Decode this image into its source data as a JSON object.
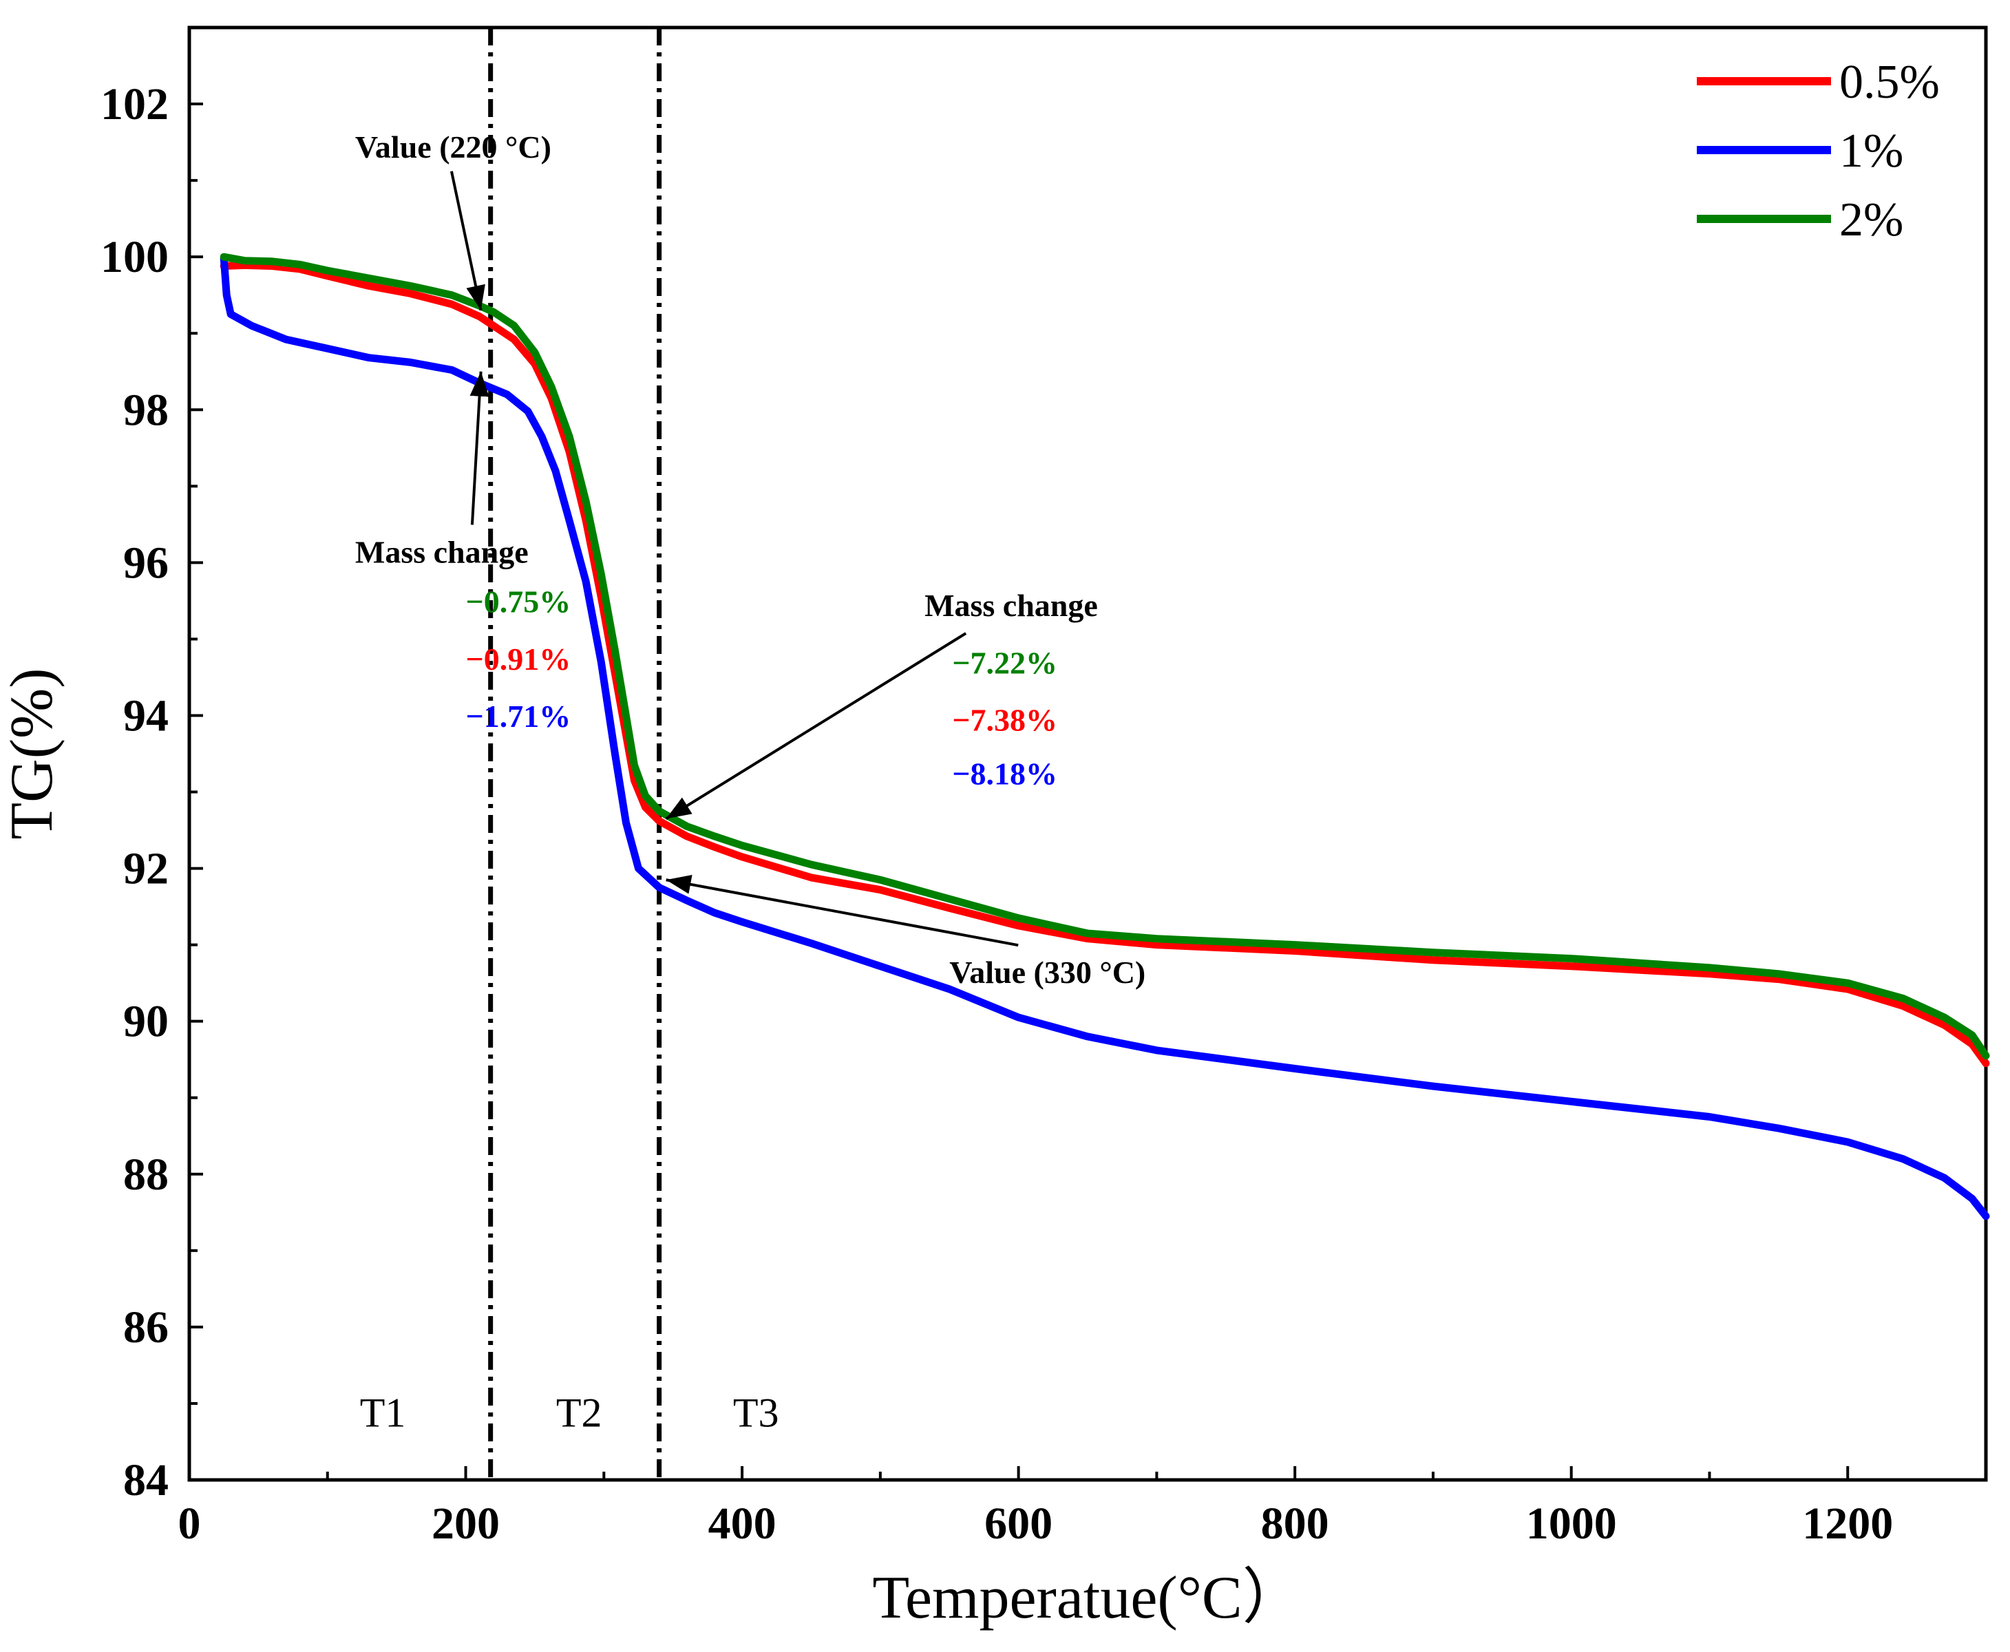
{
  "chart_data": {
    "type": "line",
    "title": "",
    "xlabel": "Temperatue(°C）",
    "ylabel": "TG(%)",
    "xlim": [
      0,
      1300
    ],
    "ylim": [
      84,
      103
    ],
    "xticks": [
      0,
      200,
      400,
      600,
      800,
      1000,
      1200
    ],
    "yticks": [
      84,
      86,
      88,
      90,
      92,
      94,
      96,
      98,
      100,
      102
    ],
    "legend_position": "top-right",
    "series": [
      {
        "name": "0.5%",
        "color": "#ff0000",
        "points": [
          [
            25,
            99.88
          ],
          [
            40,
            99.89
          ],
          [
            60,
            99.88
          ],
          [
            80,
            99.84
          ],
          [
            100,
            99.75
          ],
          [
            130,
            99.62
          ],
          [
            160,
            99.52
          ],
          [
            190,
            99.38
          ],
          [
            210,
            99.22
          ],
          [
            220,
            99.1
          ],
          [
            235,
            98.92
          ],
          [
            250,
            98.6
          ],
          [
            262,
            98.15
          ],
          [
            275,
            97.45
          ],
          [
            287,
            96.55
          ],
          [
            298,
            95.55
          ],
          [
            308,
            94.55
          ],
          [
            316,
            93.75
          ],
          [
            322,
            93.15
          ],
          [
            330,
            92.8
          ],
          [
            340,
            92.62
          ],
          [
            360,
            92.42
          ],
          [
            380,
            92.28
          ],
          [
            400,
            92.15
          ],
          [
            450,
            91.88
          ],
          [
            500,
            91.72
          ],
          [
            550,
            91.48
          ],
          [
            600,
            91.25
          ],
          [
            650,
            91.08
          ],
          [
            700,
            91.0
          ],
          [
            800,
            90.92
          ],
          [
            900,
            90.8
          ],
          [
            1000,
            90.72
          ],
          [
            1100,
            90.62
          ],
          [
            1150,
            90.55
          ],
          [
            1200,
            90.42
          ],
          [
            1240,
            90.2
          ],
          [
            1270,
            89.95
          ],
          [
            1290,
            89.7
          ],
          [
            1300,
            89.45
          ]
        ]
      },
      {
        "name": "1%",
        "color": "#0000ff",
        "points": [
          [
            25,
            99.98
          ],
          [
            27,
            99.5
          ],
          [
            30,
            99.25
          ],
          [
            45,
            99.1
          ],
          [
            70,
            98.92
          ],
          [
            100,
            98.8
          ],
          [
            130,
            98.68
          ],
          [
            160,
            98.62
          ],
          [
            190,
            98.52
          ],
          [
            210,
            98.35
          ],
          [
            230,
            98.2
          ],
          [
            245,
            97.98
          ],
          [
            255,
            97.65
          ],
          [
            265,
            97.2
          ],
          [
            275,
            96.55
          ],
          [
            287,
            95.75
          ],
          [
            298,
            94.7
          ],
          [
            308,
            93.5
          ],
          [
            316,
            92.6
          ],
          [
            325,
            92.0
          ],
          [
            340,
            91.75
          ],
          [
            360,
            91.58
          ],
          [
            380,
            91.42
          ],
          [
            400,
            91.3
          ],
          [
            450,
            91.02
          ],
          [
            500,
            90.72
          ],
          [
            550,
            90.42
          ],
          [
            600,
            90.05
          ],
          [
            650,
            89.8
          ],
          [
            700,
            89.62
          ],
          [
            800,
            89.38
          ],
          [
            900,
            89.15
          ],
          [
            1000,
            88.95
          ],
          [
            1100,
            88.75
          ],
          [
            1150,
            88.6
          ],
          [
            1200,
            88.42
          ],
          [
            1240,
            88.2
          ],
          [
            1270,
            87.95
          ],
          [
            1290,
            87.68
          ],
          [
            1300,
            87.45
          ]
        ]
      },
      {
        "name": "2%",
        "color": "#008000",
        "points": [
          [
            25,
            100.0
          ],
          [
            40,
            99.95
          ],
          [
            60,
            99.94
          ],
          [
            80,
            99.9
          ],
          [
            100,
            99.82
          ],
          [
            130,
            99.72
          ],
          [
            160,
            99.62
          ],
          [
            190,
            99.5
          ],
          [
            210,
            99.36
          ],
          [
            220,
            99.28
          ],
          [
            235,
            99.1
          ],
          [
            250,
            98.75
          ],
          [
            262,
            98.3
          ],
          [
            275,
            97.65
          ],
          [
            287,
            96.8
          ],
          [
            298,
            95.85
          ],
          [
            308,
            94.85
          ],
          [
            316,
            94.0
          ],
          [
            322,
            93.35
          ],
          [
            330,
            92.95
          ],
          [
            340,
            92.75
          ],
          [
            360,
            92.55
          ],
          [
            380,
            92.42
          ],
          [
            400,
            92.3
          ],
          [
            450,
            92.05
          ],
          [
            500,
            91.85
          ],
          [
            550,
            91.6
          ],
          [
            600,
            91.35
          ],
          [
            650,
            91.15
          ],
          [
            700,
            91.08
          ],
          [
            800,
            91.0
          ],
          [
            900,
            90.9
          ],
          [
            1000,
            90.82
          ],
          [
            1100,
            90.7
          ],
          [
            1150,
            90.62
          ],
          [
            1200,
            90.5
          ],
          [
            1240,
            90.3
          ],
          [
            1270,
            90.05
          ],
          [
            1290,
            89.82
          ],
          [
            1300,
            89.55
          ]
        ]
      }
    ],
    "vlines": [
      218,
      340
    ],
    "regions": [
      {
        "label": "T1",
        "x": 140
      },
      {
        "label": "T2",
        "x": 282
      },
      {
        "label": "T3",
        "x": 410
      }
    ],
    "annotations": [
      {
        "text": "Value (220 °C)",
        "x": 120,
        "y": 101.3,
        "arrow_to": [
          211,
          99.3
        ]
      },
      {
        "text": "Mass change",
        "x": 120,
        "y": 96.0,
        "arrow_to": [
          211,
          98.5
        ]
      },
      {
        "text": "Mass change",
        "x": 532,
        "y": 95.3,
        "arrow_to": [
          345,
          92.65
        ]
      },
      {
        "text": "Value (330 °C)",
        "x": 550,
        "y": 90.5,
        "arrow_to": [
          345,
          91.85
        ]
      }
    ],
    "mass_change_labels": [
      {
        "text": "−0.75%",
        "color": "#008000",
        "x": 200,
        "y": 95.35
      },
      {
        "text": "−0.91%",
        "color": "#ff0000",
        "x": 200,
        "y": 94.6
      },
      {
        "text": "−1.71%",
        "color": "#0000ff",
        "x": 200,
        "y": 93.85
      },
      {
        "text": "−7.22%",
        "color": "#008000",
        "x": 552,
        "y": 94.55
      },
      {
        "text": "−7.38%",
        "color": "#ff0000",
        "x": 552,
        "y": 93.8
      },
      {
        "text": "−8.18%",
        "color": "#0000ff",
        "x": 552,
        "y": 93.1
      }
    ]
  }
}
